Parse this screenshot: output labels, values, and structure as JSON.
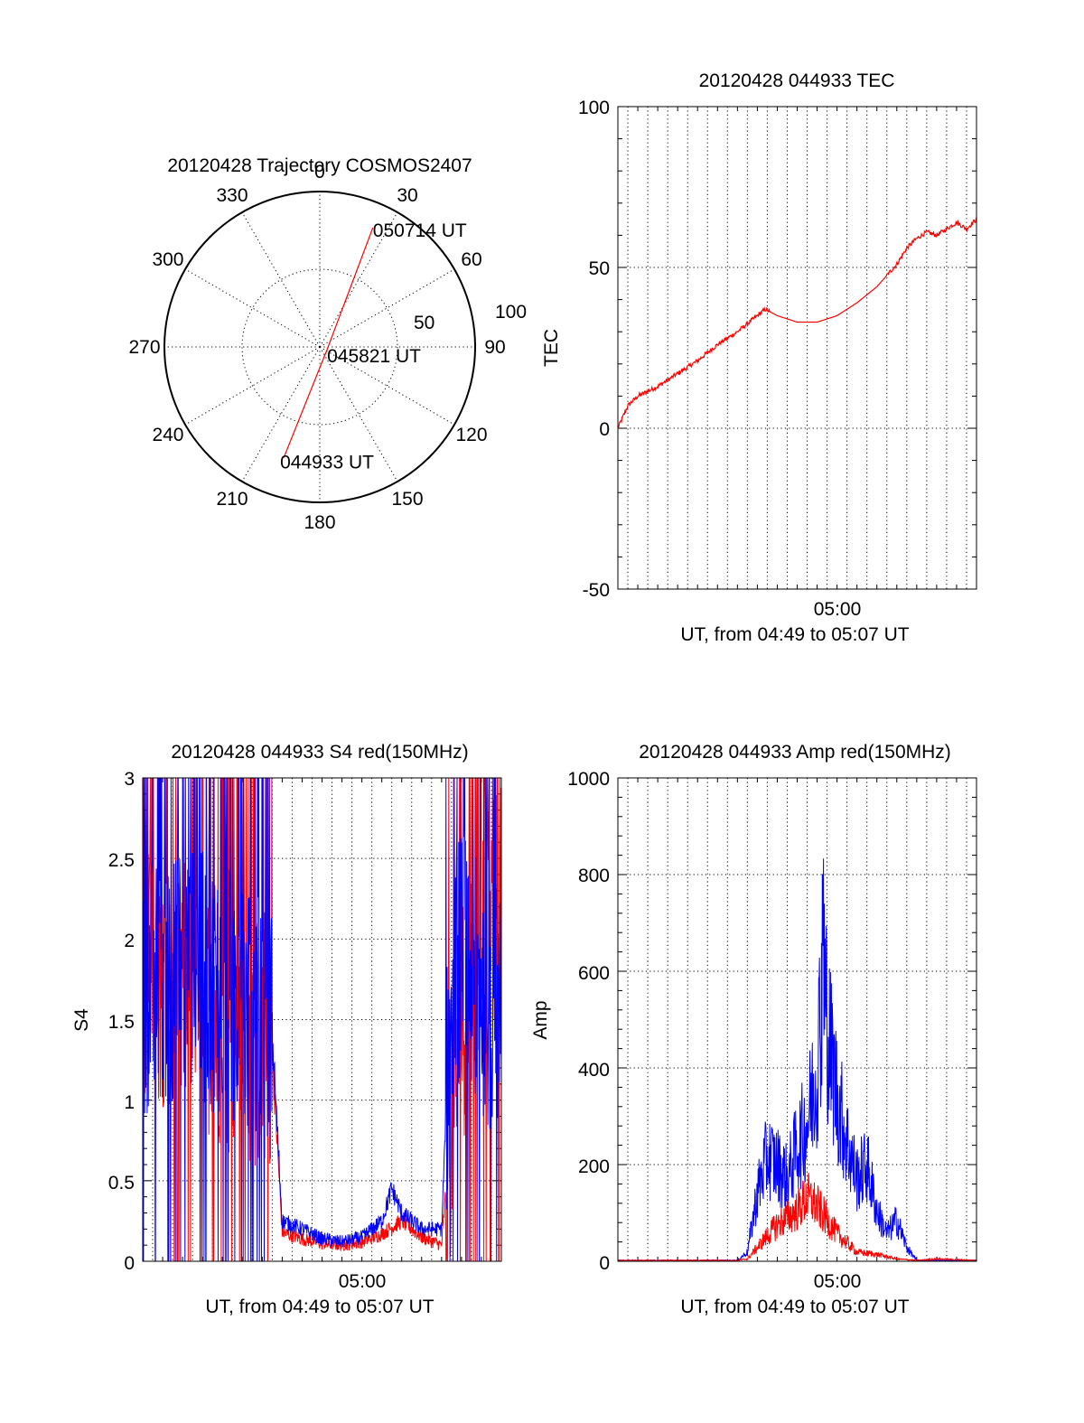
{
  "chart_data": [
    {
      "type": "polar",
      "title": "20120428 Trajectory COSMOS2407",
      "angle_labels": [
        "0",
        "30",
        "60",
        "90",
        "120",
        "150",
        "180",
        "210",
        "240",
        "270",
        "300",
        "330"
      ],
      "radial_labels": [
        "50",
        "100"
      ],
      "rlim": [
        0,
        100
      ],
      "grid": true,
      "series": [
        {
          "color": "#ff0000",
          "points": [
            {
              "az": 198,
              "r": 75,
              "label": "044933 UT"
            },
            {
              "az": 110,
              "r": 5,
              "label": "045821 UT"
            },
            {
              "az": 24,
              "r": 84,
              "label": "050714 UT"
            }
          ]
        }
      ]
    },
    {
      "type": "line",
      "title": "20120428 044933 TEC",
      "xlabel": "UT, from 04:49 to 05:07 UT",
      "ylabel": "TEC",
      "xtick_labels": [
        "05:00"
      ],
      "ytick_labels": [
        "-50",
        "0",
        "50",
        "100"
      ],
      "ylim": [
        -50,
        100
      ],
      "grid": true,
      "series": [
        {
          "color": "#ff0000",
          "x": [
            0,
            0.5,
            1,
            2,
            3,
            4,
            5,
            6,
            7,
            7.4,
            8,
            9,
            10,
            11,
            12,
            13,
            14,
            14.5,
            15,
            15.5,
            16,
            16.5,
            17,
            17.5,
            18
          ],
          "y": [
            0,
            7,
            10,
            13,
            17,
            21,
            26,
            30,
            35,
            37,
            35,
            33,
            33,
            35,
            39,
            44,
            51,
            56,
            59,
            61,
            60,
            62,
            64,
            62,
            65
          ]
        }
      ]
    },
    {
      "type": "line",
      "title": "20120428 044933 S4 red(150MHz)",
      "xlabel": "UT, from 04:49 to 05:07 UT",
      "ylabel": "S4",
      "xtick_labels": [
        "05:00"
      ],
      "ytick_labels": [
        "0",
        "0.5",
        "1",
        "1.5",
        "2",
        "2.5",
        "3"
      ],
      "ylim": [
        0,
        3
      ],
      "grid": true,
      "series": [
        {
          "color": "#ff0000",
          "x": [
            0,
            2,
            4,
            6.5,
            7,
            8,
            9,
            10,
            11,
            12,
            13,
            14,
            15,
            15.5,
            16,
            17,
            18
          ],
          "y": [
            1.8,
            1.7,
            1.5,
            1.3,
            0.18,
            0.14,
            0.11,
            0.1,
            0.12,
            0.17,
            0.25,
            0.15,
            0.1,
            0.9,
            1.5,
            2.0,
            2.2
          ]
        },
        {
          "color": "#0000ff",
          "x": [
            0,
            2,
            4,
            6.5,
            7,
            8,
            9,
            10,
            11,
            12,
            12.5,
            13,
            14,
            15,
            15.5,
            16,
            17,
            18
          ],
          "y": [
            1.7,
            1.8,
            1.7,
            1.4,
            0.25,
            0.2,
            0.14,
            0.12,
            0.15,
            0.25,
            0.45,
            0.3,
            0.2,
            0.2,
            1.8,
            1.9,
            1.7,
            1.5
          ]
        }
      ]
    },
    {
      "type": "line",
      "title": "20120428 044933 Amp red(150MHz)",
      "xlabel": "UT, from 04:49 to 05:07 UT",
      "ylabel": "Amp",
      "xtick_labels": [
        "05:00"
      ],
      "ytick_labels": [
        "0",
        "200",
        "400",
        "600",
        "800",
        "1000"
      ],
      "ylim": [
        0,
        1000
      ],
      "grid": true,
      "series": [
        {
          "color": "#ff0000",
          "x": [
            0,
            6,
            6.5,
            7,
            8,
            9,
            9.5,
            10,
            10.5,
            11,
            12,
            13,
            14,
            15,
            16,
            18
          ],
          "y": [
            2,
            2,
            5,
            30,
            80,
            110,
            140,
            120,
            90,
            60,
            20,
            15,
            5,
            2,
            5,
            2
          ]
        },
        {
          "color": "#0000ff",
          "x": [
            0,
            6,
            6.5,
            7,
            7.5,
            8,
            8.5,
            9,
            9.5,
            10,
            10.3,
            10.6,
            11,
            11.5,
            12,
            12.5,
            13,
            13.5,
            14,
            14.5,
            15,
            18
          ],
          "y": [
            2,
            2,
            20,
            150,
            230,
            210,
            180,
            250,
            300,
            420,
            650,
            480,
            360,
            260,
            180,
            210,
            110,
            60,
            90,
            30,
            2,
            2
          ]
        }
      ]
    }
  ]
}
